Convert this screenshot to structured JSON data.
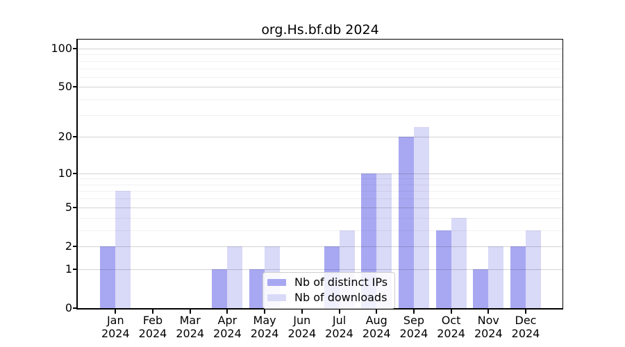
{
  "title": "org.Hs.bf.db 2024",
  "figure": {
    "background": "#ffffff",
    "spine_color": "#000000",
    "major_grid_color": "rgba(0,0,0,0.17)",
    "minor_grid_color": "rgba(0,0,0,0.055)"
  },
  "legend": {
    "position": "inside-bottom-center"
  },
  "chart_data": {
    "type": "bar",
    "title": "org.Hs.bf.db 2024",
    "xlabel": "",
    "ylabel": "",
    "yscale": "log1p",
    "ylim": [
      0,
      118
    ],
    "grid": true,
    "y_ticks": [
      0,
      1,
      2,
      5,
      10,
      20,
      50,
      100
    ],
    "y_minor_gridlines": [
      3,
      4,
      6,
      7,
      8,
      9,
      30,
      40,
      60,
      70,
      80,
      90
    ],
    "categories": [
      "Jan 2024",
      "Feb 2024",
      "Mar 2024",
      "Apr 2024",
      "May 2024",
      "Jun 2024",
      "Jul 2024",
      "Aug 2024",
      "Sep 2024",
      "Oct 2024",
      "Nov 2024",
      "Dec 2024"
    ],
    "series": [
      {
        "name": "Nb of distinct IPs",
        "color": "#a8a8f2",
        "values": [
          2,
          0,
          0,
          1,
          1,
          0,
          2,
          10,
          20,
          3,
          1,
          2
        ]
      },
      {
        "name": "Nb of downloads",
        "color": "#d9d9f8",
        "values": [
          7,
          0,
          0,
          2,
          2,
          0,
          3,
          10,
          24,
          4,
          2,
          3
        ]
      }
    ],
    "legend_position": "inside bottom-center"
  }
}
